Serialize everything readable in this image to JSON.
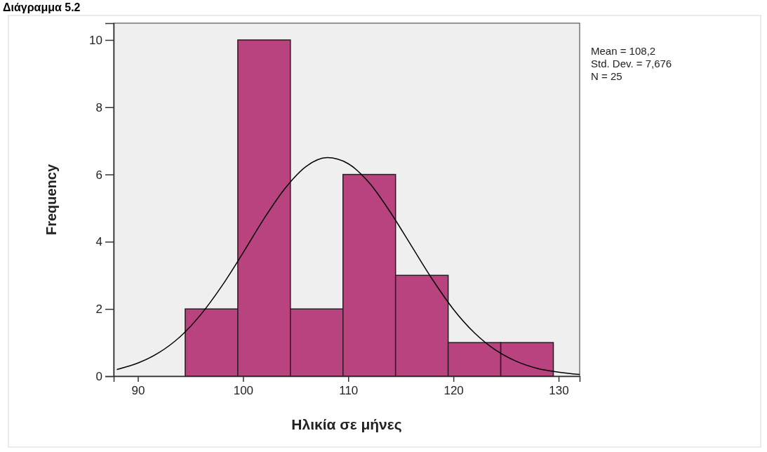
{
  "chart_data": {
    "type": "histogram",
    "title": "Διάγραμμα 5.2",
    "xlabel": "Ηλικία σε μήνες",
    "ylabel": "Frequency",
    "bins": [
      94.5,
      99.5,
      104.5,
      109.5,
      114.5,
      119.5,
      124.5,
      129.5
    ],
    "values": [
      2,
      10,
      2,
      6,
      3,
      1,
      1
    ],
    "color": "#b8437e",
    "series": [
      {
        "type": "line",
        "color": "#000000",
        "x": [
          88,
          90,
          92,
          94,
          96,
          98,
          100,
          102,
          104,
          106,
          108,
          110,
          112,
          114,
          116,
          118,
          120,
          122,
          124,
          126,
          128,
          130,
          132
        ],
        "values": [
          0.2,
          0.39,
          0.7,
          1.17,
          1.84,
          2.69,
          3.67,
          4.69,
          5.59,
          6.24,
          6.5,
          6.32,
          5.75,
          4.88,
          3.88,
          2.88,
          1.99,
          1.29,
          0.78,
          0.44,
          0.23,
          0.12,
          0.05
        ]
      }
    ],
    "xlim": [
      87.7,
      132
    ],
    "xticks": [
      90,
      100,
      110,
      120,
      130
    ],
    "ylim": [
      0,
      10.5
    ],
    "yticks": [
      0,
      2,
      4,
      6,
      8,
      10
    ],
    "grid": false,
    "annotations": [
      "Mean = 108,2",
      "Std. Dev. = 7,676",
      "N = 25"
    ]
  }
}
